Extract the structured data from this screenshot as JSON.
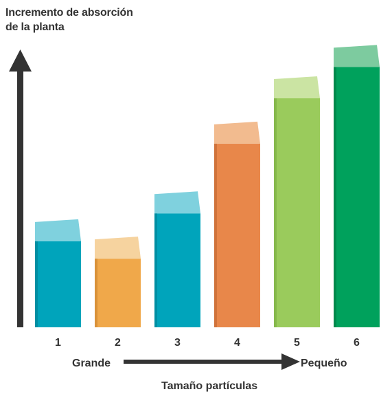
{
  "chart_data": {
    "type": "bar",
    "title_lines": [
      "Incremento de absorción",
      "de la planta"
    ],
    "categories": [
      "1",
      "2",
      "3",
      "4",
      "5",
      "6"
    ],
    "values": [
      155,
      130,
      195,
      295,
      360,
      405
    ],
    "colors": {
      "front": [
        "#00A4BB",
        "#F0A84A",
        "#00A4BB",
        "#E8874A",
        "#9ACB5C",
        "#00A15C"
      ],
      "top": [
        "#7FD1DE",
        "#F6D39F",
        "#7FD1DE",
        "#F2BB8F",
        "#CBE4A3",
        "#7DCB9F"
      ],
      "side": [
        "#008FA3",
        "#D9923A",
        "#008FA3",
        "#D0733B",
        "#86B84C",
        "#00894C"
      ]
    },
    "x_axis": {
      "left_label": "Grande",
      "right_label": "Pequeño",
      "title": "Tamaño partículas"
    },
    "ylim": [
      0,
      430
    ],
    "grid": false,
    "legend": "none"
  }
}
